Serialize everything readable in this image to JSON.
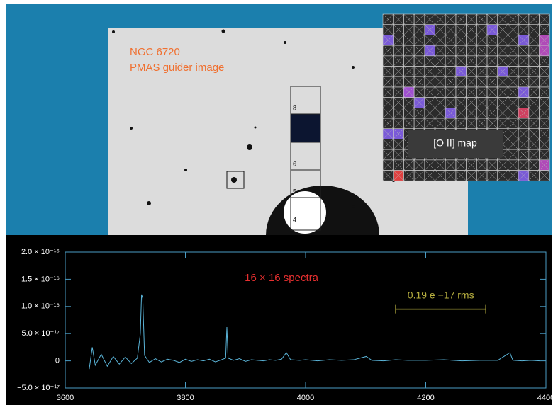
{
  "image": {
    "title": "NGC 6720",
    "subtitle": "PMAS guider image",
    "slit_labels": [
      "8",
      "6",
      "5",
      "4"
    ],
    "map_label": "[O II] map"
  },
  "chart_data": {
    "type": "line",
    "annotation": "16 × 16 spectra",
    "color": "#5ab4d8",
    "x": [
      3640,
      3645,
      3650,
      3660,
      3670,
      3680,
      3690,
      3700,
      3710,
      3720,
      3725,
      3727,
      3729,
      3732,
      3740,
      3750,
      3760,
      3770,
      3780,
      3790,
      3800,
      3810,
      3820,
      3830,
      3840,
      3850,
      3860,
      3867,
      3869,
      3871,
      3880,
      3890,
      3900,
      3910,
      3920,
      3930,
      3940,
      3950,
      3960,
      3968,
      3975,
      3990,
      4000,
      4020,
      4040,
      4060,
      4080,
      4101,
      4110,
      4130,
      4150,
      4170,
      4200,
      4230,
      4260,
      4290,
      4320,
      4340,
      4345,
      4360,
      4375,
      4390
    ],
    "values": [
      -1.5e-17,
      2.5e-17,
      -8e-18,
      1.2e-17,
      -1e-17,
      8e-18,
      -6e-18,
      7e-18,
      -5e-18,
      5e-18,
      5e-17,
      1.22e-16,
      1.15e-16,
      1e-17,
      -3e-18,
      4e-18,
      -2e-18,
      3e-18,
      1e-18,
      -3e-18,
      3e-18,
      -1e-18,
      2e-18,
      0,
      3e-18,
      -2e-18,
      2e-18,
      5e-18,
      6.2e-17,
      5e-18,
      1e-18,
      4e-18,
      -1e-18,
      2e-18,
      1e-18,
      0,
      2e-18,
      1e-18,
      3e-18,
      1.5e-17,
      2e-18,
      1e-18,
      2e-18,
      0,
      2e-18,
      1e-18,
      2e-18,
      8e-18,
      1e-18,
      0,
      2e-18,
      1e-18,
      1e-18,
      2e-18,
      0,
      1e-18,
      1e-18,
      1.5e-17,
      1e-18,
      0,
      1e-18,
      0
    ],
    "xlim": [
      3600,
      4400
    ],
    "xticks": [
      3600,
      3800,
      4000,
      4200,
      4400
    ],
    "ylim": [
      -5e-17,
      2e-16
    ],
    "yticks": [
      {
        "value": -5e-17,
        "label": "−5.0 × 10⁻¹⁷"
      },
      0,
      {
        "value": 5e-17,
        "label": "5.0 × 10⁻¹⁷"
      },
      {
        "value": 1e-16,
        "label": "1.0 × 10⁻¹⁶"
      },
      {
        "value": 1.5e-16,
        "label": "1.5 × 10⁻¹⁶"
      },
      {
        "value": 2e-16,
        "label": "2.0 × 10⁻¹⁶"
      }
    ],
    "rms_bar": {
      "label": "0.19 e −17 rms",
      "x": [
        4150,
        4300
      ],
      "y": 9.5e-17
    }
  }
}
